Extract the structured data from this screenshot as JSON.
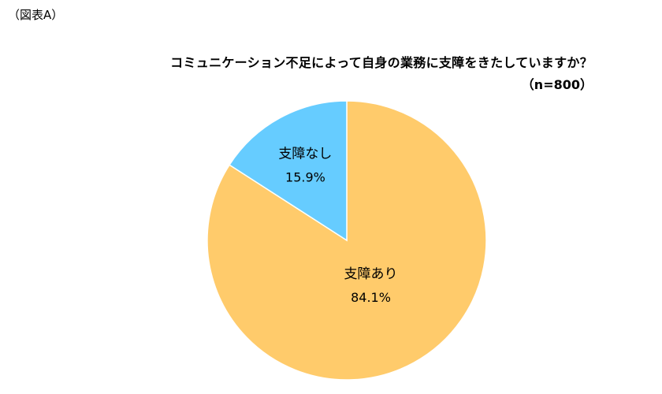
{
  "figure_label": "（図表A）",
  "chart_data": {
    "type": "pie",
    "title": "コミュニケーション不足によって自身の業務に支障をきたしていますか？",
    "subtitle": "（n=800）",
    "slices": [
      {
        "label": "支障あり",
        "value": 84.1,
        "value_label": "84.1%",
        "color": "#FFCB6B"
      },
      {
        "label": "支障なし",
        "value": 15.9,
        "value_label": "15.9%",
        "color": "#66CCFF"
      }
    ],
    "start_angle_deg": 0,
    "direction": "clockwise",
    "stroke_color": "#ffffff"
  }
}
